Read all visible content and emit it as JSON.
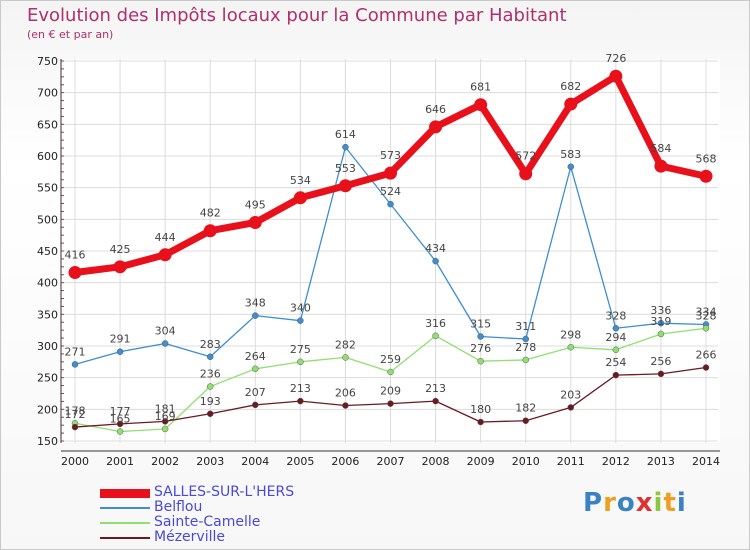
{
  "header": {
    "title": "Evolution des Impôts locaux pour la Commune par Habitant",
    "subtitle": "(en € et par an)"
  },
  "brand": {
    "text": "Proxiti",
    "colors": [
      "#3b82c4",
      "#f0a020",
      "#3b82c4",
      "#e03030",
      "#8dc63f",
      "#f0a020",
      "#3b82c4"
    ]
  },
  "chart_data": {
    "type": "line",
    "title": "Evolution des Impôts locaux pour la Commune par Habitant",
    "subtitle": "(en € et par an)",
    "x": [
      "2000",
      "2001",
      "2002",
      "2003",
      "2004",
      "2005",
      "2006",
      "2007",
      "2008",
      "2009",
      "2010",
      "2011",
      "2012",
      "2013",
      "2014"
    ],
    "ylim": [
      150,
      750
    ],
    "yticks": [
      150,
      200,
      250,
      300,
      350,
      400,
      450,
      500,
      550,
      600,
      650,
      700,
      750
    ],
    "grid": true,
    "legend_position": "bottom-left",
    "series": [
      {
        "name": "SALLES-SUR-L'HERS",
        "color": "#e8101a",
        "values": [
          416,
          425,
          444,
          482,
          495,
          534,
          553,
          573,
          646,
          681,
          572,
          682,
          726,
          584,
          568
        ]
      },
      {
        "name": "Belflou",
        "color": "#3d8fd1",
        "values": [
          271,
          291,
          304,
          283,
          348,
          340,
          614,
          524,
          434,
          315,
          311,
          583,
          328,
          336,
          334
        ]
      },
      {
        "name": "Sainte-Camelle",
        "color": "#90e070",
        "values": [
          178,
          165,
          169,
          236,
          264,
          275,
          282,
          259,
          316,
          276,
          278,
          298,
          294,
          319,
          328
        ]
      },
      {
        "name": "Mézerville",
        "color": "#6b1a22",
        "values": [
          172,
          177,
          181,
          193,
          207,
          213,
          206,
          209,
          213,
          180,
          182,
          203,
          254,
          256,
          266
        ]
      }
    ]
  }
}
